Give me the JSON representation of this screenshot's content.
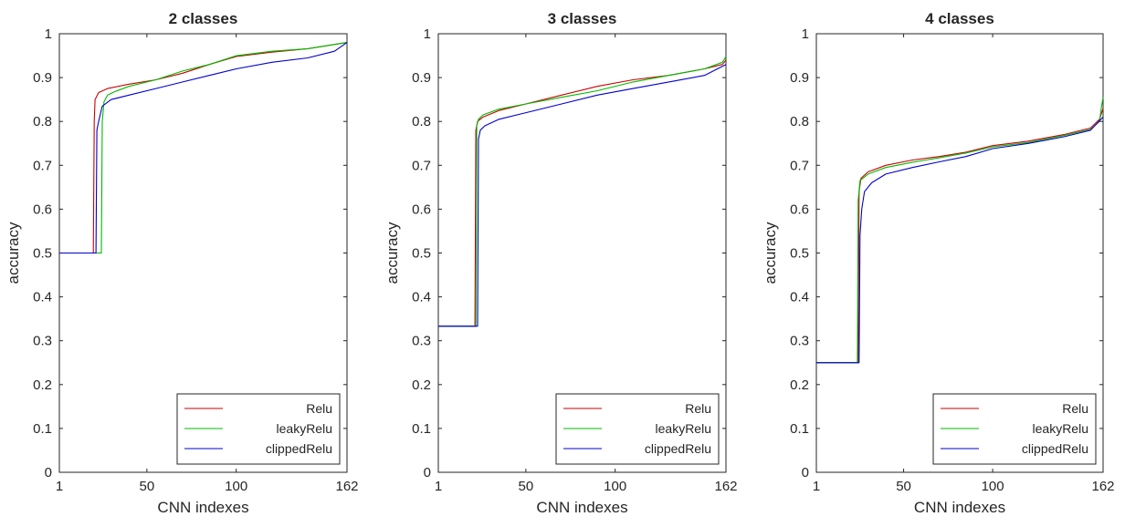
{
  "chart_data": [
    {
      "type": "line",
      "title": "2 classes",
      "xlabel": "CNN indexes",
      "ylabel": "accuracy",
      "xlim": [
        1,
        162
      ],
      "ylim": [
        0,
        1
      ],
      "xticks": [
        1,
        50,
        100,
        162
      ],
      "yticks": [
        0,
        0.1,
        0.2,
        0.3,
        0.4,
        0.5,
        0.6,
        0.7,
        0.8,
        0.9,
        1
      ],
      "ytick_labels": [
        "0",
        "0.1",
        "0.2",
        "0.3",
        "0.4",
        "0.5",
        "0.6",
        "0.7",
        "0.8",
        "0.9",
        "1"
      ],
      "grid": false,
      "legend_position": "bottom-right",
      "series": [
        {
          "name": "Relu",
          "color": "#cc0000",
          "x": [
            1,
            20,
            20.5,
            21,
            23,
            28,
            40,
            55,
            70,
            85,
            100,
            120,
            140,
            162
          ],
          "y": [
            0.5,
            0.5,
            0.8,
            0.85,
            0.866,
            0.875,
            0.885,
            0.895,
            0.91,
            0.93,
            0.948,
            0.958,
            0.966,
            0.98
          ]
        },
        {
          "name": "leakyRelu",
          "color": "#00bb00",
          "x": [
            1,
            24.5,
            25,
            26,
            28,
            32,
            40,
            55,
            70,
            85,
            100,
            120,
            140,
            162
          ],
          "y": [
            0.5,
            0.5,
            0.8,
            0.845,
            0.86,
            0.868,
            0.88,
            0.895,
            0.915,
            0.93,
            0.95,
            0.96,
            0.966,
            0.98
          ]
        },
        {
          "name": "clippedRelu",
          "color": "#0000cc",
          "x": [
            1,
            21.5,
            22,
            23,
            25,
            30,
            40,
            55,
            70,
            85,
            100,
            120,
            140,
            155,
            162
          ],
          "y": [
            0.5,
            0.5,
            0.78,
            0.8,
            0.835,
            0.85,
            0.86,
            0.875,
            0.89,
            0.905,
            0.92,
            0.935,
            0.945,
            0.96,
            0.98
          ]
        }
      ]
    },
    {
      "type": "line",
      "title": "3 classes",
      "xlabel": "CNN indexes",
      "ylabel": "accuracy",
      "xlim": [
        1,
        162
      ],
      "ylim": [
        0,
        1
      ],
      "xticks": [
        1,
        50,
        100,
        162
      ],
      "yticks": [
        0,
        0.1,
        0.2,
        0.3,
        0.4,
        0.5,
        0.6,
        0.7,
        0.8,
        0.9,
        1
      ],
      "ytick_labels": [
        "0",
        "0.1",
        "0.2",
        "0.3",
        "0.4",
        "0.5",
        "0.6",
        "0.7",
        "0.8",
        "0.9",
        "1"
      ],
      "grid": false,
      "legend_position": "bottom-right",
      "series": [
        {
          "name": "Relu",
          "color": "#cc0000",
          "x": [
            1,
            21.5,
            22,
            23,
            26,
            35,
            50,
            70,
            90,
            110,
            130,
            150,
            160,
            162
          ],
          "y": [
            0.333,
            0.333,
            0.78,
            0.8,
            0.81,
            0.825,
            0.84,
            0.86,
            0.88,
            0.895,
            0.905,
            0.92,
            0.93,
            0.94
          ]
        },
        {
          "name": "leakyRelu",
          "color": "#00bb00",
          "x": [
            1,
            22,
            22.5,
            23.5,
            26,
            35,
            50,
            70,
            90,
            110,
            130,
            150,
            160,
            162
          ],
          "y": [
            0.333,
            0.333,
            0.79,
            0.805,
            0.815,
            0.828,
            0.84,
            0.855,
            0.87,
            0.89,
            0.905,
            0.92,
            0.935,
            0.948
          ]
        },
        {
          "name": "clippedRelu",
          "color": "#0000cc",
          "x": [
            1,
            23,
            23.5,
            24.5,
            27,
            35,
            50,
            70,
            90,
            110,
            130,
            150,
            162
          ],
          "y": [
            0.333,
            0.333,
            0.76,
            0.78,
            0.79,
            0.805,
            0.82,
            0.84,
            0.86,
            0.875,
            0.89,
            0.905,
            0.93
          ]
        }
      ]
    },
    {
      "type": "line",
      "title": "4 classes",
      "xlabel": "CNN indexes",
      "ylabel": "accuracy",
      "xlim": [
        1,
        162
      ],
      "ylim": [
        0,
        1
      ],
      "xticks": [
        1,
        50,
        100,
        162
      ],
      "yticks": [
        0,
        0.1,
        0.2,
        0.3,
        0.4,
        0.5,
        0.6,
        0.7,
        0.8,
        0.9,
        1
      ],
      "ytick_labels": [
        "0",
        "0.1",
        "0.2",
        "0.3",
        "0.4",
        "0.5",
        "0.6",
        "0.7",
        "0.8",
        "0.9",
        "1"
      ],
      "grid": false,
      "legend_position": "bottom-right",
      "series": [
        {
          "name": "Relu",
          "color": "#cc0000",
          "x": [
            1,
            24.5,
            25,
            26,
            30,
            40,
            55,
            70,
            85,
            100,
            120,
            140,
            155,
            160,
            162
          ],
          "y": [
            0.25,
            0.25,
            0.64,
            0.67,
            0.685,
            0.7,
            0.712,
            0.72,
            0.73,
            0.745,
            0.755,
            0.77,
            0.785,
            0.805,
            0.83
          ]
        },
        {
          "name": "leakyRelu",
          "color": "#00bb00",
          "x": [
            1,
            24,
            24.5,
            25.5,
            30,
            40,
            55,
            70,
            85,
            100,
            120,
            140,
            155,
            160,
            161,
            162
          ],
          "y": [
            0.25,
            0.25,
            0.62,
            0.665,
            0.68,
            0.695,
            0.707,
            0.717,
            0.728,
            0.742,
            0.752,
            0.768,
            0.782,
            0.8,
            0.83,
            0.855
          ]
        },
        {
          "name": "clippedRelu",
          "color": "#0000cc",
          "x": [
            1,
            25,
            25.5,
            26.5,
            28,
            32,
            40,
            55,
            70,
            85,
            100,
            120,
            140,
            155,
            162
          ],
          "y": [
            0.25,
            0.25,
            0.54,
            0.6,
            0.64,
            0.66,
            0.68,
            0.695,
            0.708,
            0.72,
            0.738,
            0.75,
            0.765,
            0.78,
            0.81
          ]
        }
      ]
    }
  ]
}
